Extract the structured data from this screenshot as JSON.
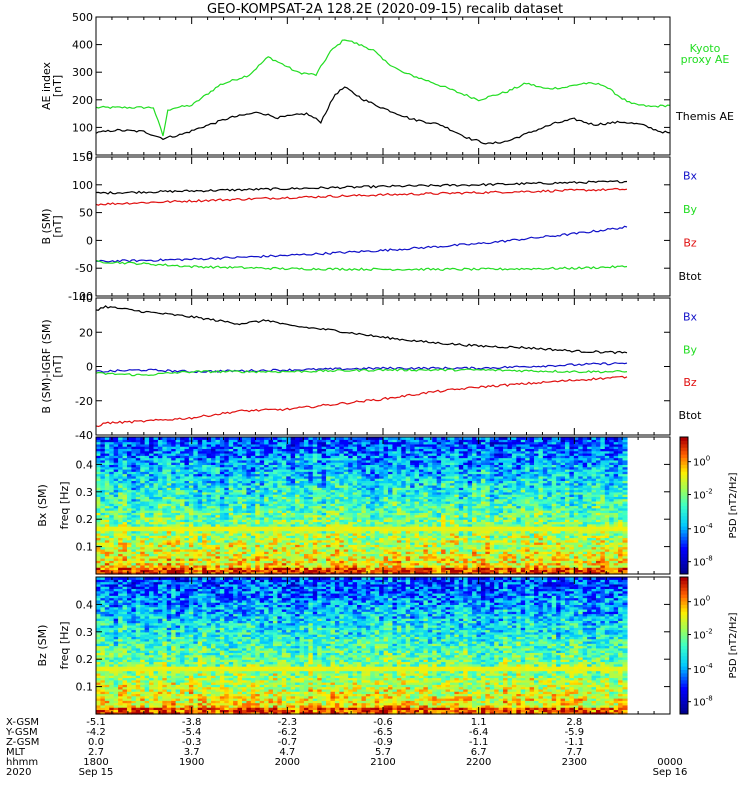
{
  "title": "GEO-KOMPSAT-2A 128.2E (2020-09-15) recalib dataset",
  "colors": {
    "black": "#000000",
    "red": "#e01010",
    "green": "#22dd22",
    "blue": "#1010c8",
    "kyoto": "#22dd22"
  },
  "chart_data": [
    {
      "type": "line",
      "ylabel": "AE index\n[nT]",
      "ylim": [
        0,
        500
      ],
      "yticks": [
        "0",
        "100",
        "200",
        "300",
        "400",
        "500"
      ],
      "x_range_hours": [
        18,
        24
      ],
      "legend": [
        "Kyoto\nproxy AE",
        "Themis AE"
      ],
      "series": [
        {
          "name": "Kyoto proxy AE",
          "color": "green",
          "x": [
            18.0,
            18.6,
            18.7,
            18.75,
            18.8,
            19.0,
            19.3,
            19.6,
            19.8,
            20.0,
            20.1,
            20.3,
            20.45,
            20.6,
            20.75,
            20.9,
            21.0,
            21.2,
            21.5,
            21.8,
            22.0,
            22.1,
            22.3,
            22.5,
            22.7,
            22.9,
            23.1,
            23.3,
            23.5,
            23.6,
            23.8,
            24.0
          ],
          "y": [
            172,
            172,
            70,
            160,
            170,
            180,
            255,
            290,
            355,
            320,
            300,
            290,
            375,
            420,
            400,
            380,
            345,
            300,
            265,
            225,
            200,
            210,
            230,
            260,
            240,
            245,
            260,
            255,
            205,
            185,
            175,
            180
          ]
        },
        {
          "name": "Themis AE",
          "color": "black",
          "x": [
            18.0,
            18.2,
            18.5,
            18.7,
            18.9,
            19.1,
            19.4,
            19.7,
            19.9,
            20.0,
            20.2,
            20.35,
            20.5,
            20.6,
            20.8,
            21.0,
            21.3,
            21.6,
            21.9,
            22.1,
            22.3,
            22.6,
            22.8,
            23.0,
            23.2,
            23.5,
            23.7,
            23.9,
            24.0
          ],
          "y": [
            80,
            90,
            85,
            60,
            75,
            100,
            135,
            155,
            135,
            140,
            150,
            120,
            220,
            245,
            200,
            170,
            130,
            110,
            60,
            40,
            50,
            90,
            115,
            130,
            110,
            120,
            110,
            85,
            80
          ]
        }
      ]
    },
    {
      "type": "line",
      "ylabel": "B (SM)\n[nT]",
      "ylim": [
        -100,
        150
      ],
      "yticks": [
        "-100",
        "-50",
        "0",
        "50",
        "100",
        "150"
      ],
      "x_range_hours": [
        18,
        24
      ],
      "legend": [
        "Bx",
        "By",
        "Bz",
        "Btot"
      ],
      "series": [
        {
          "name": "Btot",
          "color": "black",
          "x": [
            18.0,
            19.0,
            20.0,
            21.0,
            22.0,
            23.0,
            23.55
          ],
          "y": [
            85,
            89,
            93,
            97,
            100,
            104,
            106
          ]
        },
        {
          "name": "Bz",
          "color": "red",
          "x": [
            18.0,
            19.0,
            20.0,
            21.0,
            22.0,
            23.0,
            23.55
          ],
          "y": [
            65,
            71,
            77,
            82,
            86,
            90,
            92
          ]
        },
        {
          "name": "Bx",
          "color": "blue",
          "x": [
            18.0,
            19.0,
            20.0,
            21.0,
            22.0,
            23.0,
            23.55
          ],
          "y": [
            -38,
            -34,
            -27,
            -18,
            -6,
            12,
            24
          ]
        },
        {
          "name": "By",
          "color": "green",
          "x": [
            18.0,
            18.5,
            19.0,
            20.0,
            21.0,
            22.0,
            23.0,
            23.55
          ],
          "y": [
            -38,
            -42,
            -47,
            -51,
            -52,
            -52,
            -50,
            -47
          ]
        }
      ]
    },
    {
      "type": "line",
      "ylabel": "B (SM)-IGRF (SM)\n[nT]",
      "ylim": [
        -40,
        40
      ],
      "yticks": [
        "-40",
        "-20",
        "0",
        "20",
        "40"
      ],
      "x_range_hours": [
        18,
        24
      ],
      "legend": [
        "Bx",
        "By",
        "Bz",
        "Btot"
      ],
      "series": [
        {
          "name": "Btot",
          "color": "black",
          "x": [
            18.0,
            18.1,
            18.5,
            19.0,
            19.5,
            19.8,
            20.0,
            20.5,
            21.0,
            21.5,
            22.0,
            22.5,
            23.0,
            23.55
          ],
          "y": [
            33,
            35,
            32,
            29,
            25,
            27,
            24,
            21,
            17,
            14,
            12,
            11,
            9,
            8
          ]
        },
        {
          "name": "Bx",
          "color": "blue",
          "x": [
            18.0,
            18.5,
            19.0,
            20.0,
            21.0,
            22.0,
            22.5,
            23.0,
            23.55
          ],
          "y": [
            -3,
            -2,
            -3,
            -2,
            -1,
            -1,
            0,
            1,
            2
          ]
        },
        {
          "name": "By",
          "color": "green",
          "x": [
            18.0,
            18.5,
            19.0,
            20.0,
            21.0,
            22.0,
            23.0,
            23.55
          ],
          "y": [
            -4,
            -5,
            -3,
            -3,
            -2,
            -2,
            -3,
            -3
          ]
        },
        {
          "name": "Bz",
          "color": "red",
          "x": [
            18.0,
            18.1,
            18.5,
            19.0,
            19.5,
            20.0,
            20.5,
            21.0,
            21.5,
            22.0,
            22.5,
            23.0,
            23.55
          ],
          "y": [
            -35,
            -33,
            -32,
            -30,
            -26,
            -25,
            -22,
            -19,
            -15,
            -12,
            -10,
            -8,
            -6
          ]
        }
      ]
    },
    {
      "type": "heatmap",
      "ylabel": "Bx (SM)\nfreq [Hz]",
      "ylim": [
        0,
        0.5
      ],
      "yticks": [
        "0.1",
        "0.2",
        "0.3",
        "0.4"
      ],
      "x_range_hours": [
        18,
        23.55
      ],
      "colorbar_label": "PSD [nT2/Hz]",
      "colorbar_ticks": [
        "10^0",
        "10^-2",
        "10^-4",
        "10^-8"
      ],
      "band_freq_hz": 0.167
    },
    {
      "type": "heatmap",
      "ylabel": "Bz (SM)\nfreq [Hz]",
      "ylim": [
        0,
        0.5
      ],
      "yticks": [
        "0.1",
        "0.2",
        "0.3",
        "0.4"
      ],
      "x_range_hours": [
        18,
        23.55
      ],
      "colorbar_label": "PSD [nT2/Hz]",
      "colorbar_ticks": [
        "10^0",
        "10^-2",
        "10^-4",
        "10^-8"
      ],
      "band_freq_hz": 0.167
    }
  ],
  "ephemeris": {
    "labels": [
      "X-GSM",
      "Y-GSM",
      "Z-GSM",
      "MLT",
      "hhmm",
      "2020"
    ],
    "columns": [
      {
        "vals": [
          "-5.1",
          "-4.2",
          "0.0",
          "2.7",
          "1800",
          "Sep 15"
        ]
      },
      {
        "vals": [
          "-3.8",
          "-5.4",
          "-0.3",
          "3.7",
          "1900",
          ""
        ]
      },
      {
        "vals": [
          "-2.3",
          "-6.2",
          "-0.7",
          "4.7",
          "2000",
          ""
        ]
      },
      {
        "vals": [
          "-0.6",
          "-6.5",
          "-0.9",
          "5.7",
          "2100",
          ""
        ]
      },
      {
        "vals": [
          "1.1",
          "-6.4",
          "-1.1",
          "6.7",
          "2200",
          ""
        ]
      },
      {
        "vals": [
          "2.8",
          "-5.9",
          "-1.1",
          "7.7",
          "2300",
          ""
        ]
      },
      {
        "vals": [
          "",
          "",
          "",
          "",
          "0000",
          "Sep 16"
        ]
      }
    ]
  }
}
